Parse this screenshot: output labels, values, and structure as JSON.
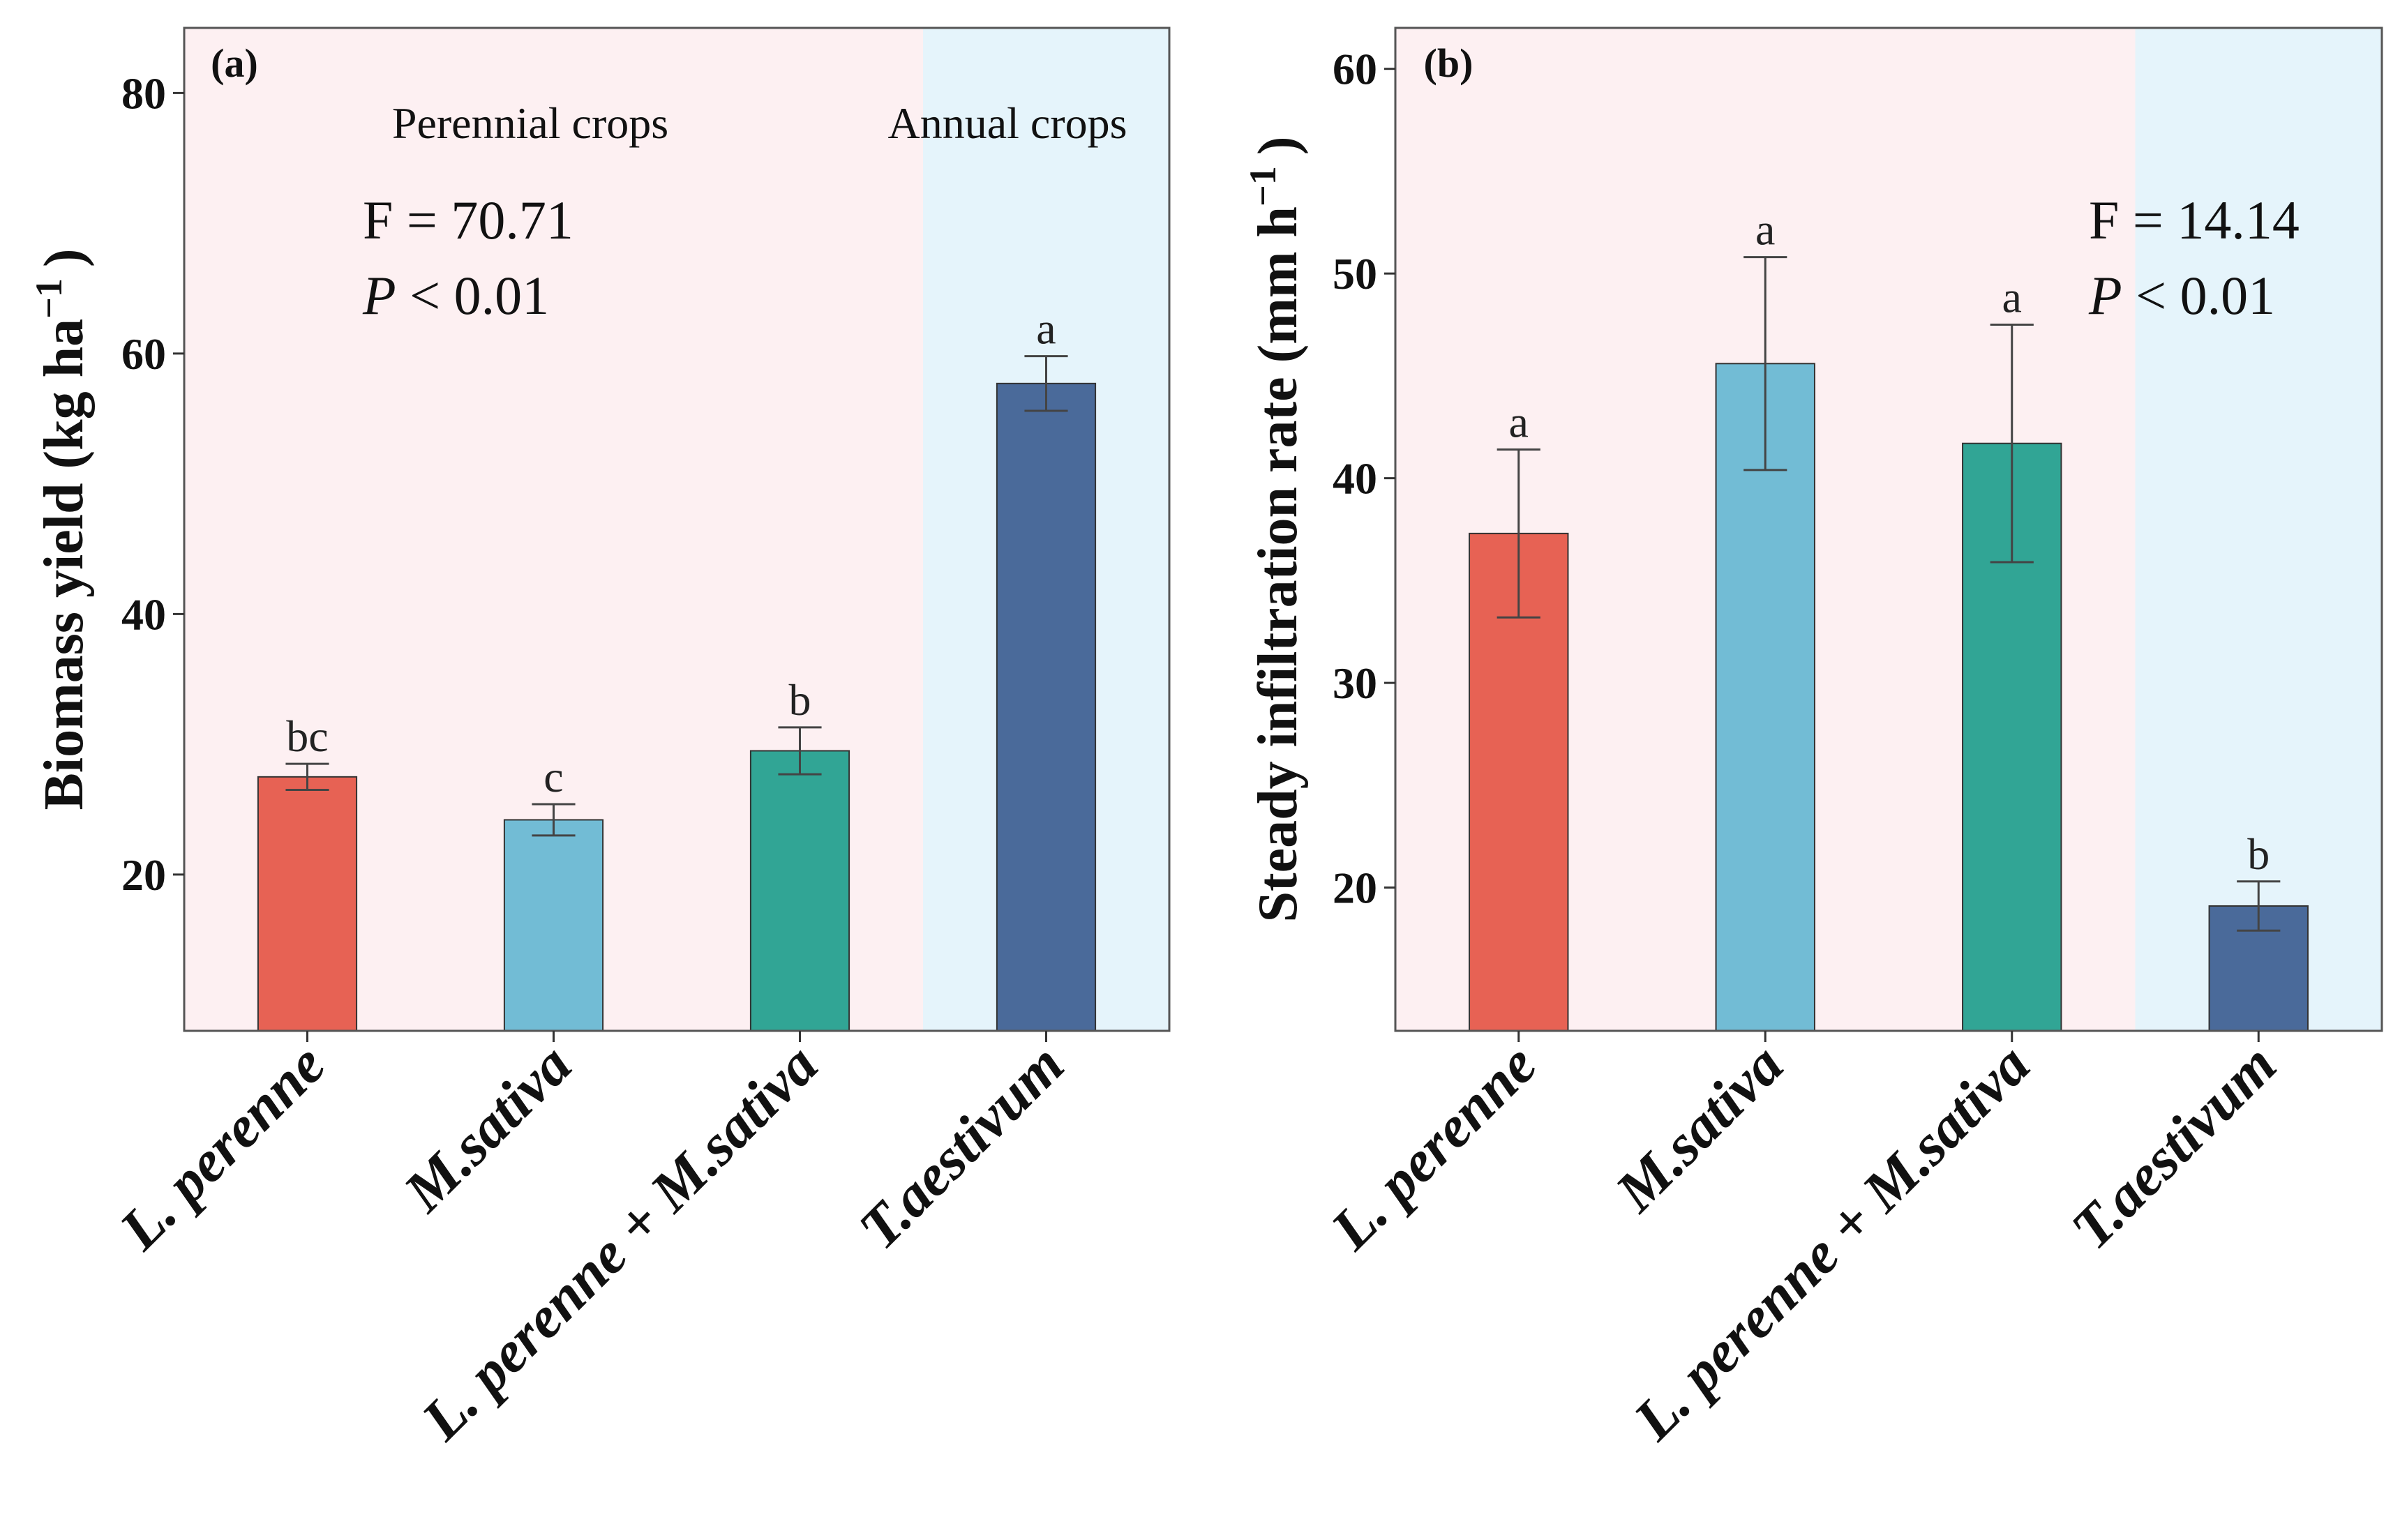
{
  "chart_data": [
    {
      "type": "bar",
      "panel_label": "(a)",
      "ylabel": "Biomass yield (kg  ha",
      "ylabel_sup": "−1",
      "ylabel_close": ")",
      "ylim": [
        8,
        85
      ],
      "yticks": [
        20,
        40,
        60,
        80
      ],
      "categories": [
        "L. perenne",
        "M.sativa",
        "L. perenne + M.sativa",
        "T.aestivum"
      ],
      "values": [
        27.5,
        24.2,
        29.5,
        57.7
      ],
      "errors": [
        1.0,
        1.2,
        1.8,
        2.1
      ],
      "letters": [
        "bc",
        "c",
        "b",
        "a"
      ],
      "colors": [
        "#E76254",
        "#72BCD5",
        "#31A595",
        "#4A6A9A"
      ],
      "regions": [
        {
          "label": "Perennial crops",
          "from": 0,
          "to": 2,
          "color": "#FDF0F2"
        },
        {
          "label": "Annual crops",
          "from": 3,
          "to": 3,
          "color": "#E5F4FB"
        }
      ],
      "stats": {
        "f_text": "F = 70.71",
        "p_symbol": "P",
        "p_rest": " < 0.01"
      }
    },
    {
      "type": "bar",
      "panel_label": "(b)",
      "ylabel": "Steady infiltration rate  (mm  h",
      "ylabel_sup": "−1",
      "ylabel_close": ")",
      "ylim": [
        13,
        62
      ],
      "yticks": [
        20,
        30,
        40,
        50,
        60
      ],
      "categories": [
        "L. perenne",
        "M.sativa",
        "L. perenne + M.sativa",
        "T.aestivum"
      ],
      "values": [
        37.3,
        45.6,
        41.7,
        19.1
      ],
      "errors": [
        4.1,
        5.2,
        5.8,
        1.2
      ],
      "letters": [
        "a",
        "a",
        "a",
        "b"
      ],
      "colors": [
        "#E76254",
        "#72BCD5",
        "#31A595",
        "#4A6A9A"
      ],
      "regions": [
        {
          "label": "",
          "from": 0,
          "to": 2,
          "color": "#FDF0F2"
        },
        {
          "label": "",
          "from": 3,
          "to": 3,
          "color": "#E5F4FB"
        }
      ],
      "stats": {
        "f_text": "F = 14.14",
        "p_symbol": "P",
        "p_rest": " < 0.01"
      }
    }
  ]
}
